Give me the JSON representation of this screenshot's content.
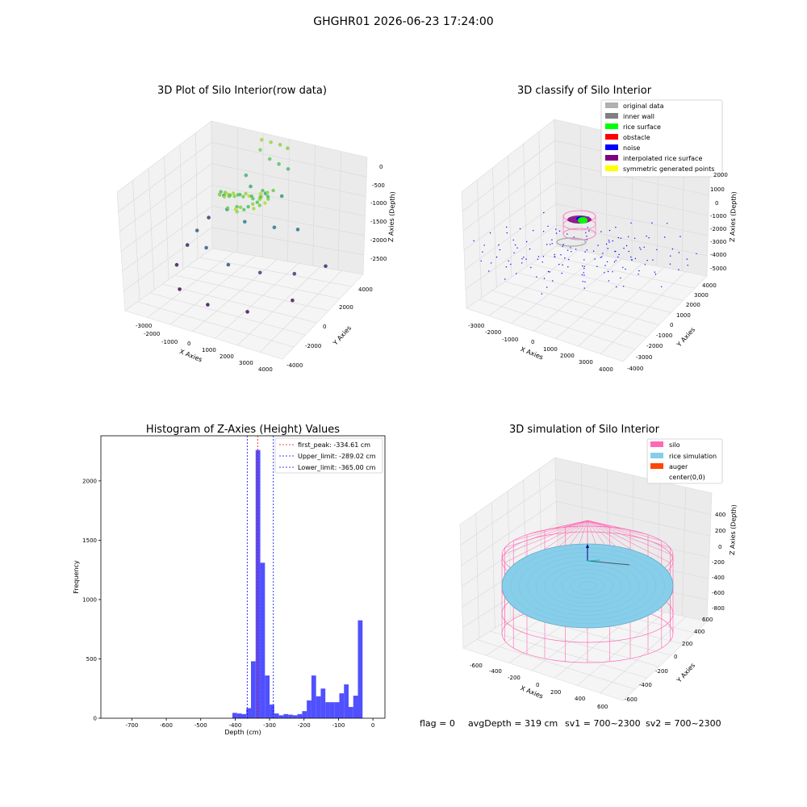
{
  "suptitle": "GHGHR01 2026-06-23 17:24:00",
  "colors": {
    "original_data": "#b0b0b0",
    "inner_wall": "#808080",
    "rice_surface": "#00ff00",
    "obstacle": "#ff0000",
    "noise": "#0000ff",
    "interpolated": "#800080",
    "symmetric": "#ffff00",
    "silo": "#ff69b4",
    "rice_sim": "#87ceeb",
    "auger": "#ff4500",
    "hist_bar": "#5050ff",
    "peak_line": "#ff0000",
    "limit_line": "#0000ff"
  },
  "panel_raw": {
    "title": "3D Plot of Silo Interior(row data)",
    "x_label": "X Axies",
    "y_label": "Y Axies",
    "z_label": "Z Axies (Depth)",
    "x_ticks": [
      "-3000",
      "-2000",
      "-1000",
      "0",
      "1000",
      "2000",
      "3000",
      "4000"
    ],
    "y_ticks": [
      "-4000",
      "-2000",
      "0",
      "2000",
      "4000"
    ],
    "z_ticks": [
      "0",
      "-500",
      "-1000",
      "-1500",
      "-2000",
      "-2500"
    ]
  },
  "panel_class": {
    "title": "3D classify of Silo Interior",
    "x_label": "X Axies",
    "y_label": "Y Axies",
    "z_label": "Z Axies (Depth)",
    "x_ticks": [
      "-3000",
      "-2000",
      "-1000",
      "0",
      "1000",
      "2000",
      "3000",
      "4000"
    ],
    "y_ticks": [
      "-4000",
      "-3000",
      "-2000",
      "-1000",
      "0",
      "1000",
      "2000",
      "3000",
      "4000"
    ],
    "z_ticks": [
      "2000",
      "1000",
      "0",
      "-1000",
      "-2000",
      "-3000",
      "-4000",
      "-5000"
    ],
    "legend": [
      "original data",
      "inner wall",
      "rice surface",
      "obstacle",
      "noise",
      "interpolated rice surface",
      "symmetric generated points"
    ]
  },
  "panel_sim": {
    "title": "3D simulation of Silo Interior",
    "x_label": "X Axies",
    "y_label": "Y Axies",
    "z_label": "Z Axies (Depth)",
    "x_ticks": [
      "-600",
      "-400",
      "-200",
      "0",
      "200",
      "400",
      "600"
    ],
    "y_ticks": [
      "-600",
      "-400",
      "-200",
      "0",
      "200",
      "400",
      "600"
    ],
    "z_ticks": [
      "400",
      "200",
      "0",
      "-200",
      "-400",
      "-600",
      "-800"
    ],
    "legend": [
      "silo",
      "rice simulation",
      "auger",
      "center(0,0)"
    ]
  },
  "footer": {
    "flag": "flag = 0",
    "avg": "avgDepth = 319 cm",
    "sv1": "sv1 = 700~2300",
    "sv2": "sv2 = 700~2300"
  },
  "chart_data": [
    {
      "type": "scatter",
      "title": "3D Plot of Silo Interior(row data)",
      "xlabel": "X Axies",
      "ylabel": "Y Axies",
      "zlabel": "Z Axies (Depth)",
      "xlim": [
        -3500,
        4500
      ],
      "ylim": [
        -4000,
        4500
      ],
      "zlim": [
        -2800,
        100
      ],
      "points_xyz": [
        [
          -300,
          1500,
          -300
        ],
        [
          0,
          1700,
          -350
        ],
        [
          300,
          1900,
          -400
        ],
        [
          600,
          2000,
          -450
        ],
        [
          -200,
          1300,
          -450
        ],
        [
          200,
          1400,
          -600
        ],
        [
          500,
          1600,
          -700
        ],
        [
          800,
          1800,
          -800
        ],
        [
          -500,
          800,
          -900
        ],
        [
          0,
          500,
          -1000
        ],
        [
          600,
          700,
          -1100
        ],
        [
          1000,
          1200,
          -1200
        ],
        [
          -1200,
          300,
          -1300
        ],
        [
          -600,
          -200,
          -1400
        ],
        [
          400,
          -300,
          -1500
        ],
        [
          1400,
          300,
          -1600
        ],
        [
          2000,
          1000,
          -1700
        ],
        [
          -1800,
          -600,
          -1900
        ],
        [
          -800,
          -1200,
          -2000
        ],
        [
          600,
          -1500,
          -2100
        ],
        [
          1800,
          -1000,
          -2200
        ],
        [
          2700,
          0,
          -2300
        ],
        [
          3000,
          1500,
          -2400
        ],
        [
          -2500,
          -1000,
          -2600
        ],
        [
          -1300,
          -2200,
          -2700
        ],
        [
          500,
          -2600,
          -2700
        ],
        [
          2200,
          -2200,
          -2700
        ],
        [
          3300,
          -800,
          -2600
        ],
        [
          -3000,
          200,
          -2500
        ],
        [
          -3300,
          1800,
          -2300
        ]
      ]
    },
    {
      "type": "scatter",
      "title": "3D classify of Silo Interior",
      "xlabel": "X Axies",
      "ylabel": "Y Axies",
      "zlabel": "Z Axies (Depth)",
      "legend": [
        "original data",
        "inner wall",
        "rice surface",
        "obstacle",
        "noise",
        "interpolated rice surface",
        "symmetric generated points"
      ],
      "xlim": [
        -3500,
        4500
      ],
      "ylim": [
        -4000,
        4500
      ],
      "zlim": [
        -5500,
        2500
      ]
    },
    {
      "type": "bar",
      "title": "Histogram of Z-Axies (Height) Values",
      "xlabel": "Depth (cm)",
      "ylabel": "Frequency",
      "xlim": [
        -790,
        35
      ],
      "ylim": [
        0,
        2380
      ],
      "x_ticks": [
        -700,
        -600,
        -500,
        -400,
        -300,
        -200,
        -100,
        0
      ],
      "y_ticks": [
        0,
        500,
        1000,
        1500,
        2000
      ],
      "bin_width": 13.5,
      "bin_start": [
        -408,
        -394.5,
        -381,
        -367.5,
        -354,
        -340.5,
        -327,
        -313.5,
        -300,
        -286.5,
        -273,
        -259.5,
        -246,
        -232.5,
        -219,
        -205.5,
        -192,
        -178.5,
        -165,
        -151.5,
        -138,
        -124.5,
        -111,
        -97.5,
        -84,
        -70.5,
        -57,
        -43.5,
        -30,
        -16.5
      ],
      "values": [
        45,
        40,
        35,
        85,
        480,
        2260,
        1310,
        360,
        115,
        40,
        25,
        35,
        30,
        25,
        35,
        60,
        150,
        360,
        185,
        250,
        135,
        135,
        135,
        210,
        285,
        95,
        190,
        825,
        0,
        0
      ],
      "lines": [
        {
          "name": "first_peak: -334.61 cm",
          "x": -334.61,
          "color": "#ff0000"
        },
        {
          "name": "Upper_limit: -289.02 cm",
          "x": -289.02,
          "color": "#0000ff"
        },
        {
          "name": "Lower_limit: -365.00 cm",
          "x": -365.0,
          "color": "#0000ff"
        }
      ]
    },
    {
      "type": "scatter",
      "title": "3D simulation of Silo Interior",
      "xlabel": "X Axies",
      "ylabel": "Y Axies",
      "zlabel": "Z Axies (Depth)",
      "legend": [
        "silo",
        "rice simulation",
        "auger",
        "center(0,0)"
      ],
      "xlim": [
        -700,
        700
      ],
      "ylim": [
        -700,
        700
      ],
      "zlim": [
        -950,
        500
      ]
    }
  ]
}
